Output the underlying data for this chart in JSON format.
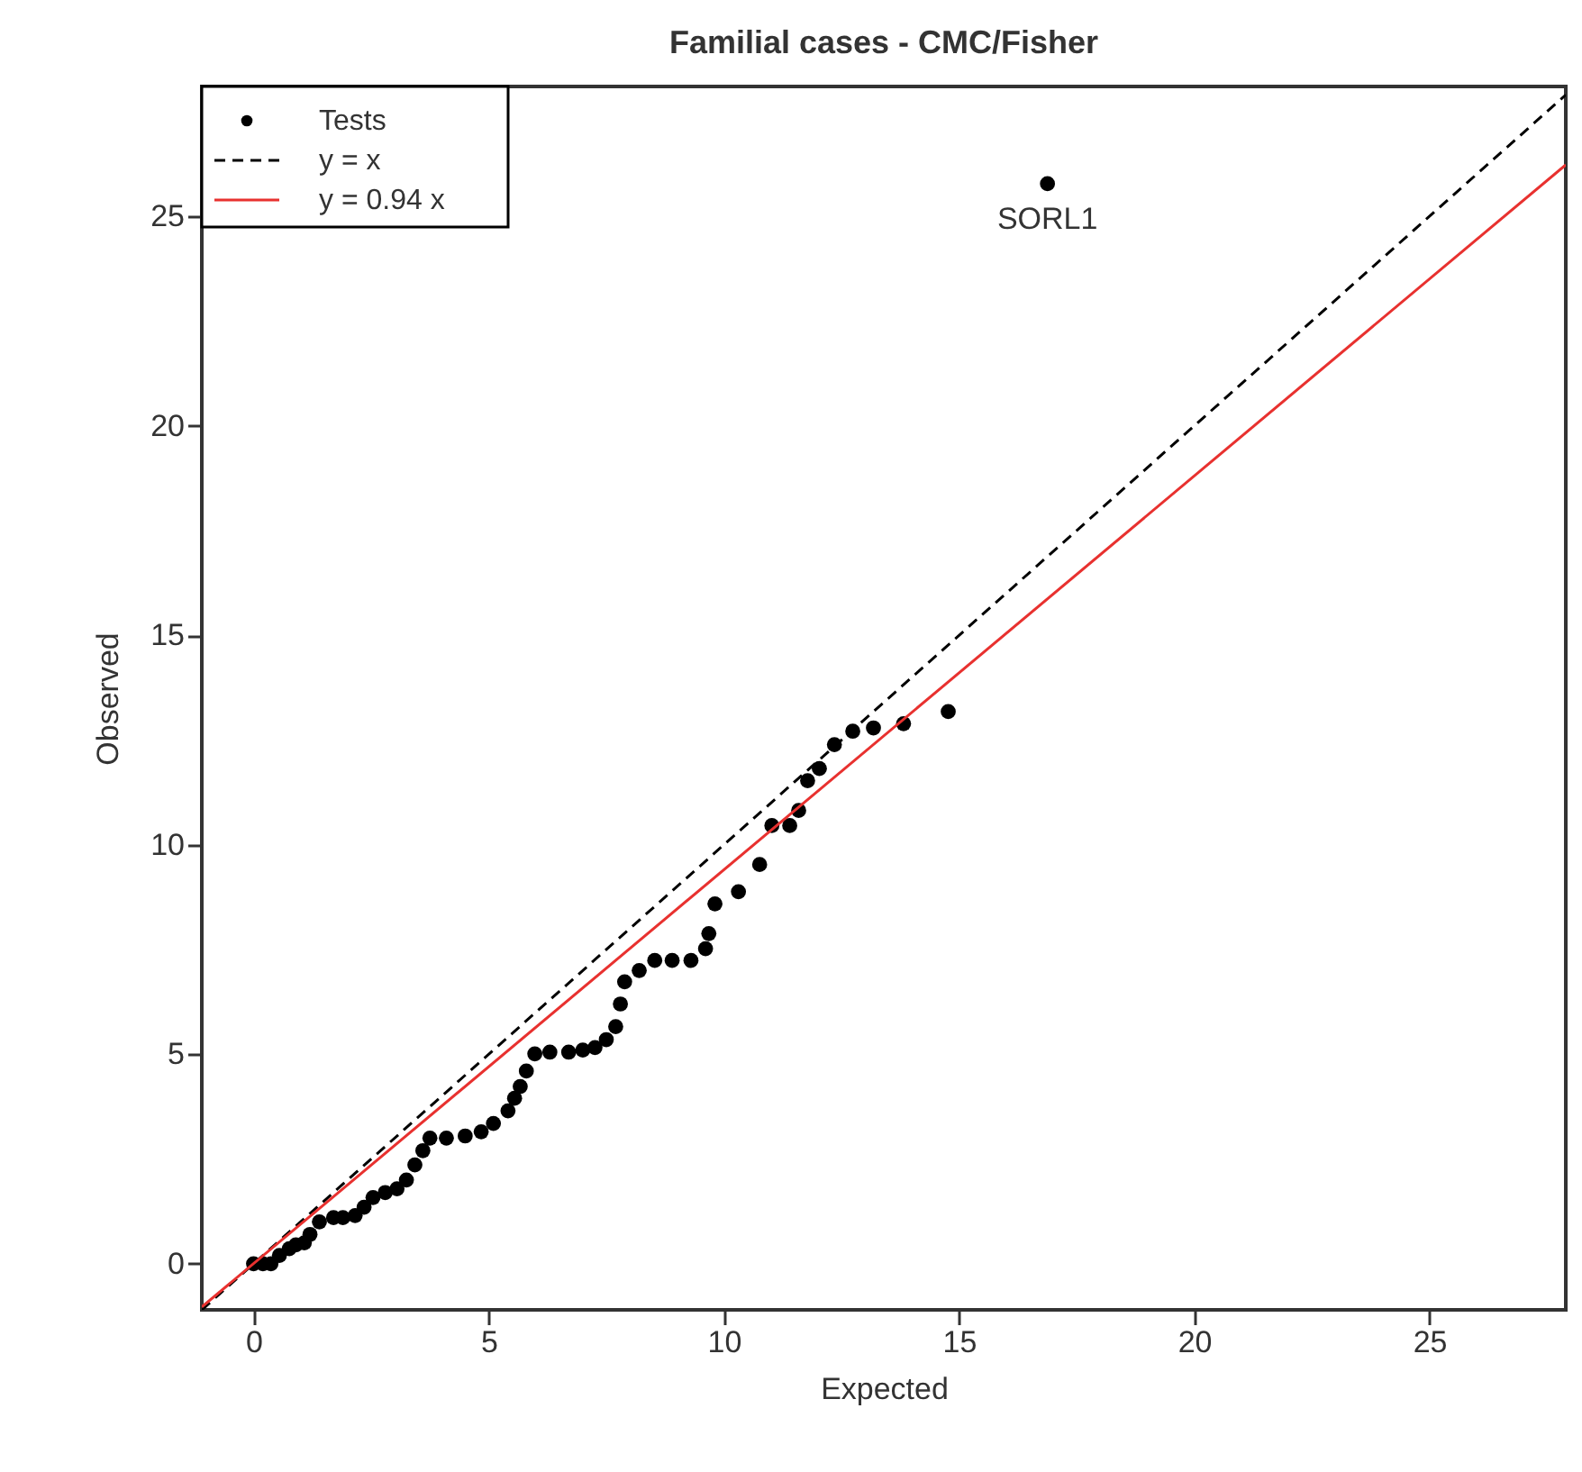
{
  "chart_data": {
    "type": "scatter",
    "title": "Familial cases - CMC/Fisher",
    "xlabel": "Expected",
    "ylabel": "Observed",
    "xlim": [
      -1.1,
      27.9
    ],
    "ylim": [
      -1.1,
      28.1
    ],
    "xticks": [
      0,
      5,
      10,
      15,
      20,
      25
    ],
    "yticks": [
      0,
      5,
      10,
      15,
      20,
      25
    ],
    "grid": false,
    "legend": "top left",
    "annotations": [
      {
        "text": "SORL1",
        "x": 16.88,
        "y": 25.78
      }
    ],
    "series": [
      {
        "name": "Tests",
        "type": "scatter",
        "marker": "circle",
        "color": "#000000",
        "x": [
          0.0,
          0.2,
          0.37,
          0.55,
          0.76,
          0.9,
          1.08,
          1.2,
          1.4,
          1.7,
          1.9,
          2.16,
          2.35,
          2.54,
          2.8,
          3.05,
          3.25,
          3.43,
          3.6,
          3.75,
          4.1,
          4.5,
          4.84,
          5.1,
          5.41,
          5.55,
          5.67,
          5.8,
          5.98,
          6.3,
          6.7,
          7.0,
          7.26,
          7.5,
          7.7,
          7.8,
          7.89,
          8.2,
          8.53,
          8.9,
          9.3,
          9.61,
          9.68,
          9.81,
          10.31,
          10.76,
          11.02,
          11.4,
          11.59,
          11.78,
          12.03,
          12.35,
          12.74,
          13.18,
          13.82,
          14.77,
          16.88
        ],
        "values": [
          0.0,
          0.0,
          0.0,
          0.2,
          0.36,
          0.45,
          0.5,
          0.7,
          1.0,
          1.1,
          1.1,
          1.15,
          1.35,
          1.58,
          1.7,
          1.79,
          2.0,
          2.36,
          2.7,
          3.0,
          3.0,
          3.05,
          3.15,
          3.35,
          3.65,
          3.95,
          4.23,
          4.6,
          5.01,
          5.05,
          5.05,
          5.1,
          5.16,
          5.35,
          5.66,
          6.2,
          6.73,
          7.0,
          7.24,
          7.24,
          7.24,
          7.52,
          7.88,
          8.59,
          8.88,
          9.53,
          10.46,
          10.46,
          10.82,
          11.53,
          11.82,
          12.39,
          12.71,
          12.79,
          12.89,
          13.18,
          25.78
        ]
      },
      {
        "name": "y = x",
        "type": "line",
        "line_style": "dashed",
        "color": "#000000",
        "x": [
          -1.1,
          27.9
        ],
        "values": [
          -1.1,
          27.9
        ]
      },
      {
        "name": "y = 0.94 x",
        "type": "line",
        "line_style": "solid",
        "color": "#e8312f",
        "x": [
          -1.1,
          27.9
        ],
        "values": [
          -1.03,
          26.23
        ]
      }
    ]
  }
}
